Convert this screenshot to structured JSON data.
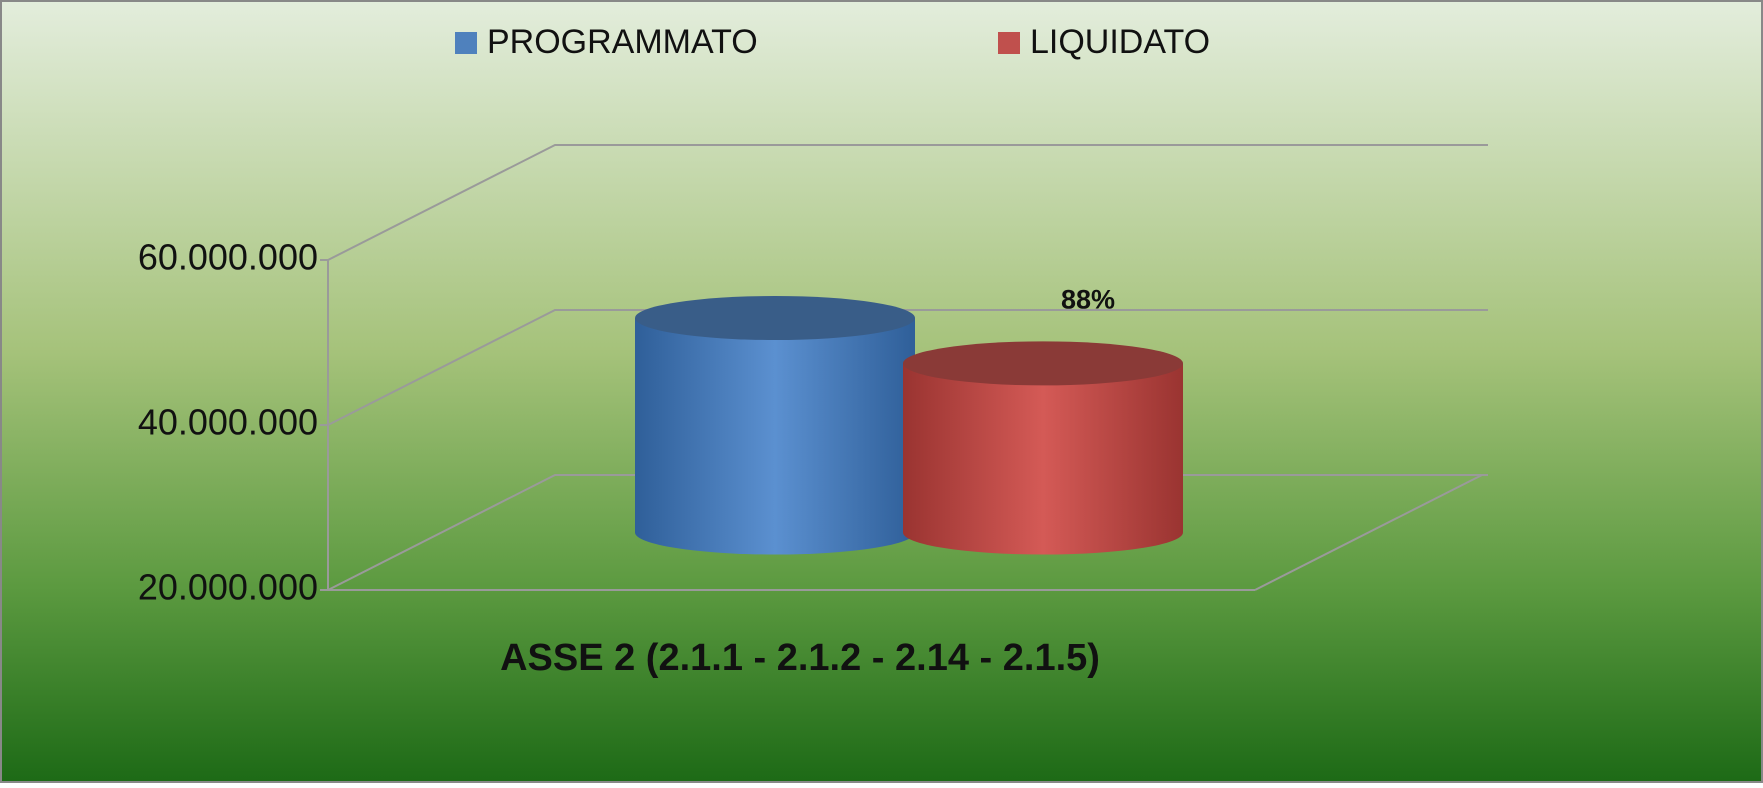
{
  "chart_data": {
    "type": "bar3d",
    "title": "ASSE 2 (2.1.1 - 2.1.2 - 2.14 - 2.1.5)",
    "series": [
      {
        "name": "PROGRAMMATO",
        "color": "#4f81bd",
        "values": [
          46000000
        ]
      },
      {
        "name": "LIQUIDATO",
        "color": "#c0504d",
        "values": [
          40500000
        ]
      }
    ],
    "annotation": "88%",
    "ylim": [
      20000000,
      60000000
    ],
    "yticks": [
      {
        "value": 20000000,
        "label": "20.000.000"
      },
      {
        "value": 40000000,
        "label": "40.000.000"
      },
      {
        "value": 60000000,
        "label": "60.000.000"
      }
    ],
    "grid": true,
    "legend": "top"
  }
}
